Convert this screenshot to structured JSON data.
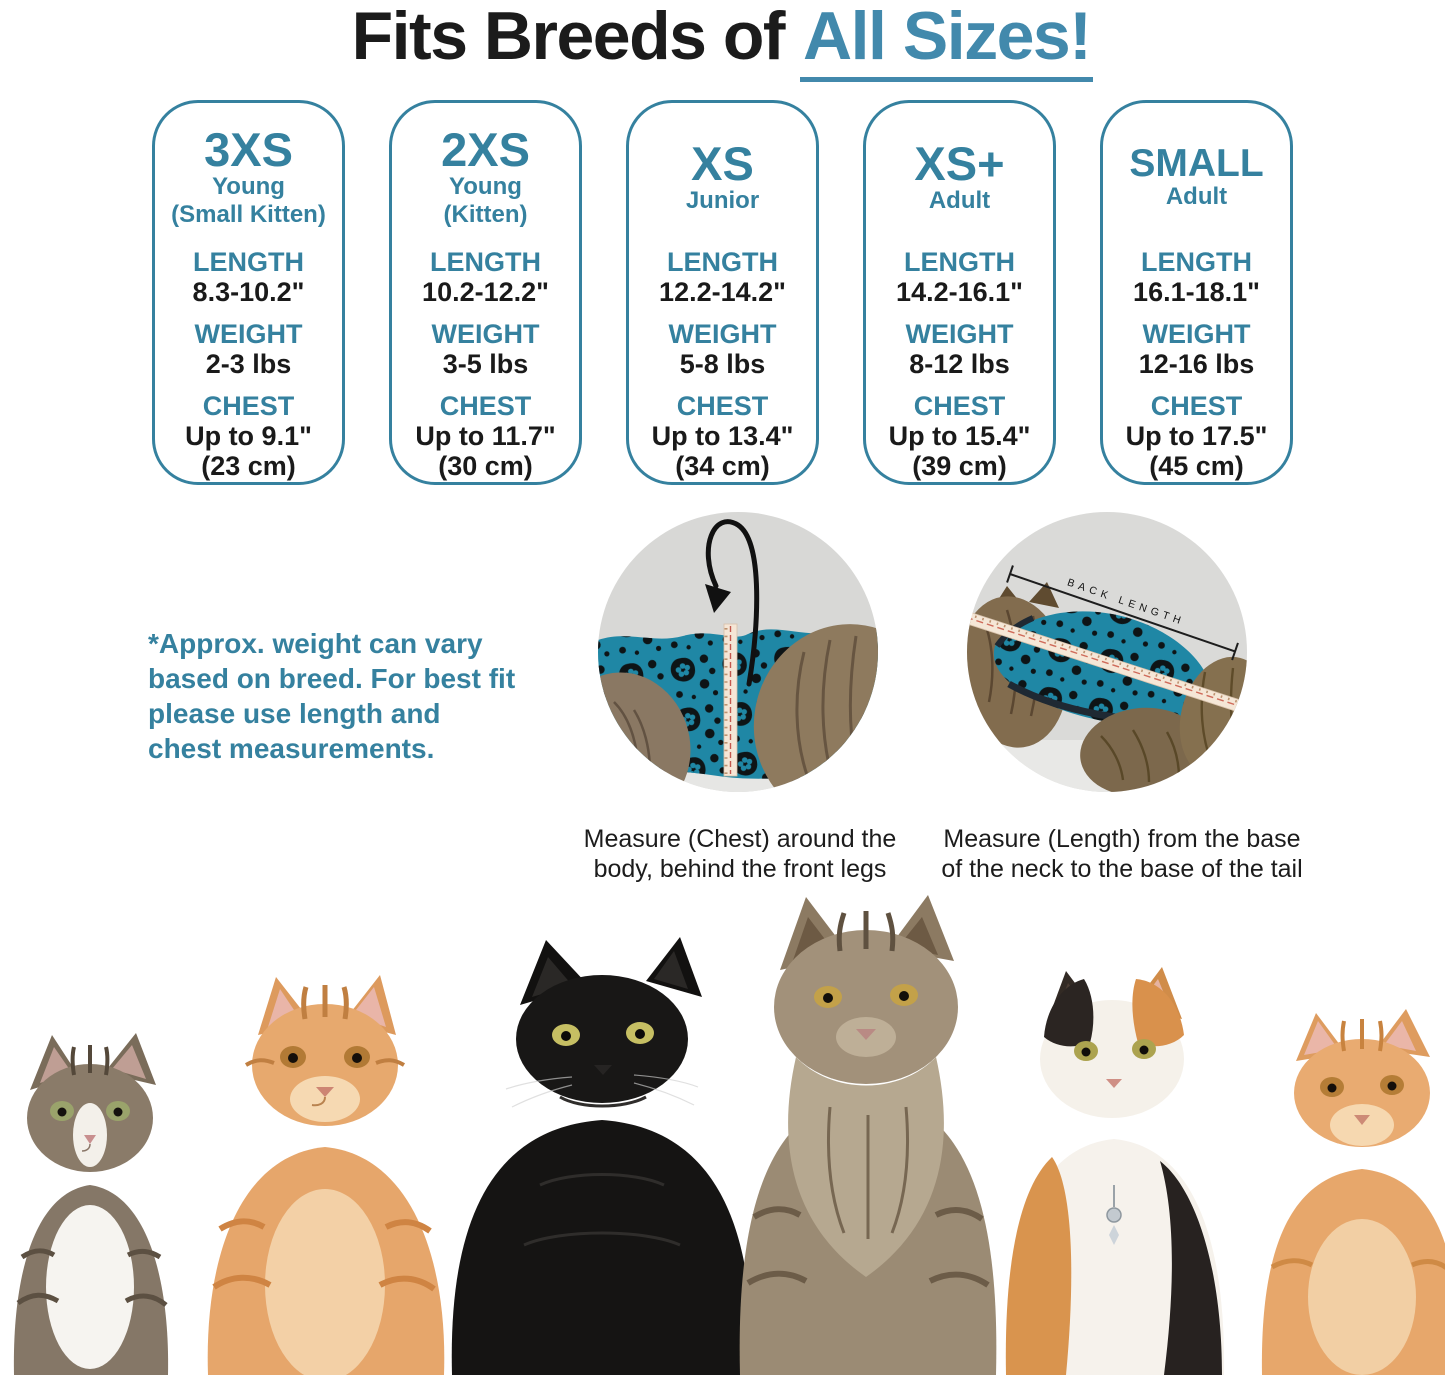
{
  "colors": {
    "accent": "#35819f",
    "title_highlight": "#4289ac",
    "title_text": "#1b1b1b",
    "value_text": "#1a1a1a",
    "garment_teal": "#1f87a5",
    "caption_text": "#1c1c1c"
  },
  "title": {
    "prefix": "Fits Breeds of",
    "highlight": "All Sizes!"
  },
  "size_cards": {
    "spec_labels": {
      "length": "LENGTH",
      "weight": "WEIGHT",
      "chest": "CHEST"
    },
    "sizes": [
      {
        "name": "3XS",
        "subtitle": [
          "Young",
          "(Small Kitten)"
        ],
        "length": "8.3-10.2\"",
        "weight": "2-3 lbs",
        "chest": "Up to 9.1\"",
        "chest_cm": "(23 cm)"
      },
      {
        "name": "2XS",
        "subtitle": [
          "Young",
          "(Kitten)"
        ],
        "length": "10.2-12.2\"",
        "weight": "3-5 lbs",
        "chest": "Up to 11.7\"",
        "chest_cm": "(30 cm)"
      },
      {
        "name": "XS",
        "subtitle": [
          "Junior"
        ],
        "length": "12.2-14.2\"",
        "weight": "5-8 lbs",
        "chest": "Up to 13.4\"",
        "chest_cm": "(34 cm)"
      },
      {
        "name": "XS+",
        "subtitle": [
          "Adult"
        ],
        "length": "14.2-16.1\"",
        "weight": "8-12 lbs",
        "chest": "Up to 15.4\"",
        "chest_cm": "(39 cm)"
      },
      {
        "name": "SMALL",
        "subtitle": [
          "Adult"
        ],
        "length": "16.1-18.1\"",
        "weight": "12-16 lbs",
        "chest": "Up to 17.5\"",
        "chest_cm": "(45 cm)"
      }
    ]
  },
  "note": {
    "lines": [
      "*Approx. weight can vary",
      "based on breed. For best fit",
      "please use length and",
      "chest measurements."
    ]
  },
  "measure_photos": {
    "back_length_label": "BACK LENGTH",
    "chest_caption_lines": [
      "Measure (Chest) around the",
      "body, behind the front legs"
    ],
    "length_caption_lines": [
      "Measure (Length) from the base",
      "of the neck to the base of the tail"
    ]
  }
}
